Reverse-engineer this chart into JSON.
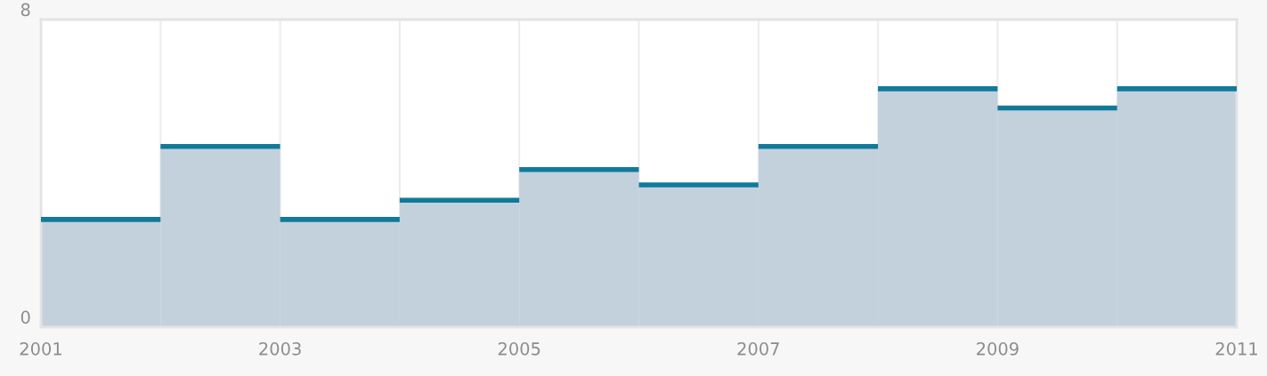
{
  "chart_data": {
    "type": "histogram",
    "bins": [
      2001,
      2002,
      2003,
      2004,
      2005,
      2006,
      2007,
      2008,
      2009,
      2010,
      2011
    ],
    "series": [
      {
        "type": "histogram",
        "color": "#c3d1dd",
        "values": [
          2.8,
          4.7,
          2.8,
          3.3,
          4.1,
          3.7,
          4.7,
          6.2,
          5.7,
          6.2
        ]
      },
      {
        "type": "step",
        "color": "#117a9a",
        "x": [
          2001,
          2002,
          2003,
          2004,
          2005,
          2006,
          2007,
          2008,
          2009,
          2010,
          2011
        ],
        "values": [
          2.8,
          4.7,
          2.8,
          3.3,
          4.1,
          3.7,
          4.7,
          6.2,
          5.7,
          6.2,
          6.2
        ]
      }
    ],
    "xlim": [
      2001,
      2011
    ],
    "xticks": [
      2001,
      {
        "value": 2002,
        "label": null
      },
      2003,
      {
        "value": 2004,
        "label": null
      },
      2005,
      {
        "value": 2006,
        "label": null
      },
      2007,
      {
        "value": 2008,
        "label": null
      },
      2009,
      {
        "value": 2010,
        "label": null
      },
      2011
    ],
    "ylim": [
      0,
      8
    ],
    "yticks": [
      0,
      8
    ],
    "grid": "x"
  }
}
